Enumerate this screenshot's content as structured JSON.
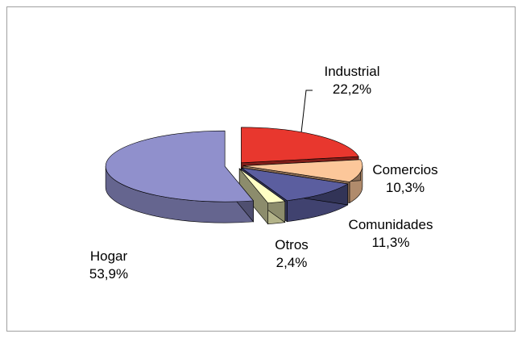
{
  "chart_data": {
    "type": "pie",
    "categories": [
      "Industrial",
      "Comercios",
      "Comunidades",
      "Otros",
      "Hogar"
    ],
    "values": [
      22.2,
      10.3,
      11.3,
      2.4,
      53.9
    ],
    "value_labels": [
      "22,2%",
      "10,3%",
      "11,3%",
      "2,4%",
      "53,9%"
    ],
    "colors": [
      "#e8372e",
      "#fcc79a",
      "#5b5e9f",
      "#ffffc4",
      "#9090cc"
    ]
  }
}
